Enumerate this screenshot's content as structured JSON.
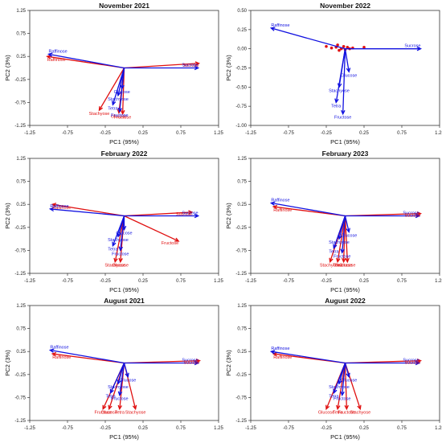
{
  "chart_data": [
    {
      "type": "scatter",
      "title": "November 2021",
      "xlabel": "PC1 (95%)",
      "ylabel": "PC2 (3%)",
      "xlim": [
        -1.25,
        1.25
      ],
      "ylim": [
        -1.25,
        1.25
      ],
      "xticks": [
        "-1.25",
        "-0.75",
        "-0.25",
        "0.25",
        "0.75",
        "1.25"
      ],
      "yticks": [
        "1.25",
        "0.75",
        "0.25",
        "-0.25",
        "-0.75",
        "-1.25"
      ],
      "series": [
        {
          "name": "blue",
          "color": "#1010e0",
          "vectors": [
            {
              "label": "Raffinose",
              "x": -1.0,
              "y": 0.3
            },
            {
              "label": "Sucrose",
              "x": 0.98,
              "y": 0.0
            },
            {
              "label": "Glucose",
              "x": -0.03,
              "y": -0.45
            },
            {
              "label": "Stachyose",
              "x": -0.08,
              "y": -0.6
            },
            {
              "label": "Tetra",
              "x": -0.15,
              "y": -0.8
            },
            {
              "label": "Fructose",
              "x": -0.06,
              "y": -0.95
            }
          ]
        },
        {
          "name": "red",
          "color": "#e01010",
          "vectors": [
            {
              "label": "Raffinose",
              "x": -1.02,
              "y": 0.25
            },
            {
              "label": "Sucrose",
              "x": 0.99,
              "y": 0.1
            },
            {
              "label": "Stachyose",
              "x": -0.33,
              "y": -0.92
            },
            {
              "label": "Fructose",
              "x": -0.02,
              "y": -1.0
            },
            {
              "label": "Glucose",
              "x": -0.07,
              "y": -0.98
            }
          ]
        }
      ],
      "points": []
    },
    {
      "type": "scatter",
      "title": "November 2022",
      "xlabel": "PC1 (95%)",
      "ylabel": "PC2 (3%)",
      "xlim": [
        -1.25,
        1.25
      ],
      "ylim": [
        -1.0,
        0.5
      ],
      "xticks": [
        "-1.25",
        "-0.75",
        "-0.25",
        "0.25",
        "0.75",
        "1.25"
      ],
      "yticks": [
        "0.50",
        "0.25",
        "0.00",
        "-0.25",
        "-0.50",
        "-0.75",
        "-1.00"
      ],
      "series": [
        {
          "name": "blue",
          "color": "#1010e0",
          "vectors": [
            {
              "label": "Raffinose",
              "x": -0.98,
              "y": 0.27
            },
            {
              "label": "Sucrose",
              "x": 1.0,
              "y": 0.0
            },
            {
              "label": "Glucose",
              "x": 0.05,
              "y": -0.3
            },
            {
              "label": "Stachyose",
              "x": -0.08,
              "y": -0.5
            },
            {
              "label": "Tetra",
              "x": -0.12,
              "y": -0.7
            },
            {
              "label": "Fructose",
              "x": -0.03,
              "y": -0.85
            }
          ]
        },
        {
          "name": "red",
          "color": "#e01010",
          "vectors": []
        }
      ],
      "points": [
        {
          "x": -0.25,
          "y": 0.03
        },
        {
          "x": -0.18,
          "y": 0.01
        },
        {
          "x": -0.12,
          "y": 0.02
        },
        {
          "x": -0.08,
          "y": -0.02
        },
        {
          "x": -0.05,
          "y": 0.0
        },
        {
          "x": -0.02,
          "y": 0.03
        },
        {
          "x": 0.0,
          "y": -0.01
        },
        {
          "x": 0.03,
          "y": 0.02
        },
        {
          "x": 0.06,
          "y": 0.0
        },
        {
          "x": 0.1,
          "y": 0.01
        },
        {
          "x": 0.25,
          "y": 0.02
        },
        {
          "x": -0.1,
          "y": 0.05
        }
      ]
    },
    {
      "type": "scatter",
      "title": "February 2022",
      "xlabel": "PC1 (95%)",
      "ylabel": "PC2 (3%)",
      "xlim": [
        -1.25,
        1.25
      ],
      "ylim": [
        -1.25,
        1.25
      ],
      "xticks": [
        "-1.25",
        "-0.75",
        "-0.25",
        "0.25",
        "0.75",
        "1.25"
      ],
      "yticks": [
        "1.25",
        "0.75",
        "0.25",
        "-0.25",
        "-0.75",
        "-1.25"
      ],
      "series": [
        {
          "name": "blue",
          "color": "#1010e0",
          "vectors": [
            {
              "label": "Raffinose",
              "x": -0.98,
              "y": 0.15
            },
            {
              "label": "Sucrose",
              "x": 0.98,
              "y": 0.0
            },
            {
              "label": "Glucose",
              "x": 0.0,
              "y": -0.3
            },
            {
              "label": "Stachyose",
              "x": -0.08,
              "y": -0.45
            },
            {
              "label": "Tetra",
              "x": -0.15,
              "y": -0.65
            },
            {
              "label": "Fructose",
              "x": -0.05,
              "y": -0.75
            }
          ]
        },
        {
          "name": "red",
          "color": "#e01010",
          "vectors": [
            {
              "label": "Raffinose",
              "x": -0.95,
              "y": 0.25
            },
            {
              "label": "Sucrose",
              "x": 0.9,
              "y": 0.08
            },
            {
              "label": "Fructose",
              "x": 0.72,
              "y": -0.55
            },
            {
              "label": "Stachyose",
              "x": -0.12,
              "y": -1.0
            },
            {
              "label": "Glucose",
              "x": -0.05,
              "y": -1.0
            }
          ]
        }
      ],
      "points": []
    },
    {
      "type": "scatter",
      "title": "February 2023",
      "xlabel": "PC1 (95%)",
      "ylabel": "PC2 (3%)",
      "xlim": [
        -1.25,
        1.25
      ],
      "ylim": [
        -1.25,
        1.25
      ],
      "xticks": [
        "-1.25",
        "-0.75",
        "-0.25",
        "0.25",
        "0.75",
        "1.25"
      ],
      "yticks": [
        "1.25",
        "0.75",
        "0.25",
        "-0.25",
        "-0.75",
        "-1.25"
      ],
      "series": [
        {
          "name": "blue",
          "color": "#1010e0",
          "vectors": [
            {
              "label": "Raffinose",
              "x": -0.98,
              "y": 0.28
            },
            {
              "label": "Sucrose",
              "x": 0.98,
              "y": 0.0
            },
            {
              "label": "Glucose",
              "x": 0.05,
              "y": -0.35
            },
            {
              "label": "Stachyose",
              "x": -0.08,
              "y": -0.5
            },
            {
              "label": "Tetra",
              "x": -0.15,
              "y": -0.7
            },
            {
              "label": "Fructose",
              "x": -0.04,
              "y": -0.8
            }
          ]
        },
        {
          "name": "red",
          "color": "#e01010",
          "vectors": [
            {
              "label": "Raffinose",
              "x": -0.95,
              "y": 0.2
            },
            {
              "label": "Sucrose",
              "x": 1.0,
              "y": 0.05
            },
            {
              "label": "Stachyose",
              "x": -0.2,
              "y": -1.0
            },
            {
              "label": "Tetra",
              "x": -0.1,
              "y": -1.0
            },
            {
              "label": "Fructose",
              "x": -0.02,
              "y": -1.0
            },
            {
              "label": "Glucose",
              "x": 0.03,
              "y": -1.0
            }
          ]
        }
      ],
      "points": []
    },
    {
      "type": "scatter",
      "title": "August 2021",
      "xlabel": "PC1 (95%)",
      "ylabel": "PC2 (3%)",
      "xlim": [
        -1.25,
        1.25
      ],
      "ylim": [
        -1.25,
        1.25
      ],
      "xticks": [
        "-1.25",
        "-0.75",
        "-0.25",
        "0.25",
        "0.75",
        "1.25"
      ],
      "yticks": [
        "1.25",
        "0.75",
        "0.25",
        "-0.25",
        "-0.75",
        "-1.25"
      ],
      "series": [
        {
          "name": "blue",
          "color": "#1010e0",
          "vectors": [
            {
              "label": "Raffinose",
              "x": -0.98,
              "y": 0.28
            },
            {
              "label": "Sucrose",
              "x": 0.98,
              "y": 0.0
            },
            {
              "label": "Glucose",
              "x": 0.05,
              "y": -0.3
            },
            {
              "label": "Stachyose",
              "x": -0.08,
              "y": -0.45
            },
            {
              "label": "Tetra",
              "x": -0.18,
              "y": -0.65
            },
            {
              "label": "Fructose",
              "x": -0.06,
              "y": -0.7
            }
          ]
        },
        {
          "name": "red",
          "color": "#e01010",
          "vectors": [
            {
              "label": "Raffinose",
              "x": -0.95,
              "y": 0.2
            },
            {
              "label": "Sucrose",
              "x": 1.0,
              "y": 0.05
            },
            {
              "label": "Fructose",
              "x": -0.28,
              "y": -1.0
            },
            {
              "label": "Glucose",
              "x": -0.2,
              "y": -1.0
            },
            {
              "label": "Tetra",
              "x": -0.06,
              "y": -1.0
            },
            {
              "label": "Stachyose",
              "x": 0.15,
              "y": -1.0
            }
          ]
        }
      ],
      "points": []
    },
    {
      "type": "scatter",
      "title": "August 2022",
      "xlabel": "PC1 (95%)",
      "ylabel": "PC2 (3%)",
      "xlim": [
        -1.25,
        1.25
      ],
      "ylim": [
        -1.25,
        1.25
      ],
      "xticks": [
        "-1.25",
        "-0.75",
        "-0.25",
        "0.25",
        "0.75",
        "1.25"
      ],
      "yticks": [
        "1.25",
        "0.75",
        "0.25",
        "-0.25",
        "-0.75",
        "-1.25"
      ],
      "series": [
        {
          "name": "blue",
          "color": "#1010e0",
          "vectors": [
            {
              "label": "Raffinose",
              "x": -0.98,
              "y": 0.25
            },
            {
              "label": "Sucrose",
              "x": 0.98,
              "y": 0.0
            },
            {
              "label": "Glucose",
              "x": 0.05,
              "y": -0.3
            },
            {
              "label": "Stachyose",
              "x": -0.08,
              "y": -0.45
            },
            {
              "label": "Tetra",
              "x": -0.15,
              "y": -0.65
            },
            {
              "label": "Fructose",
              "x": -0.04,
              "y": -0.7
            }
          ]
        },
        {
          "name": "red",
          "color": "#e01010",
          "vectors": [
            {
              "label": "Raffinose",
              "x": -0.95,
              "y": 0.2
            },
            {
              "label": "Sucrose",
              "x": 1.0,
              "y": 0.05
            },
            {
              "label": "Glucose",
              "x": -0.25,
              "y": -1.0
            },
            {
              "label": "Tetra",
              "x": -0.1,
              "y": -1.0
            },
            {
              "label": "Fructose",
              "x": 0.02,
              "y": -1.0
            },
            {
              "label": "Stachyose",
              "x": 0.2,
              "y": -1.0
            }
          ]
        }
      ],
      "points": []
    }
  ]
}
